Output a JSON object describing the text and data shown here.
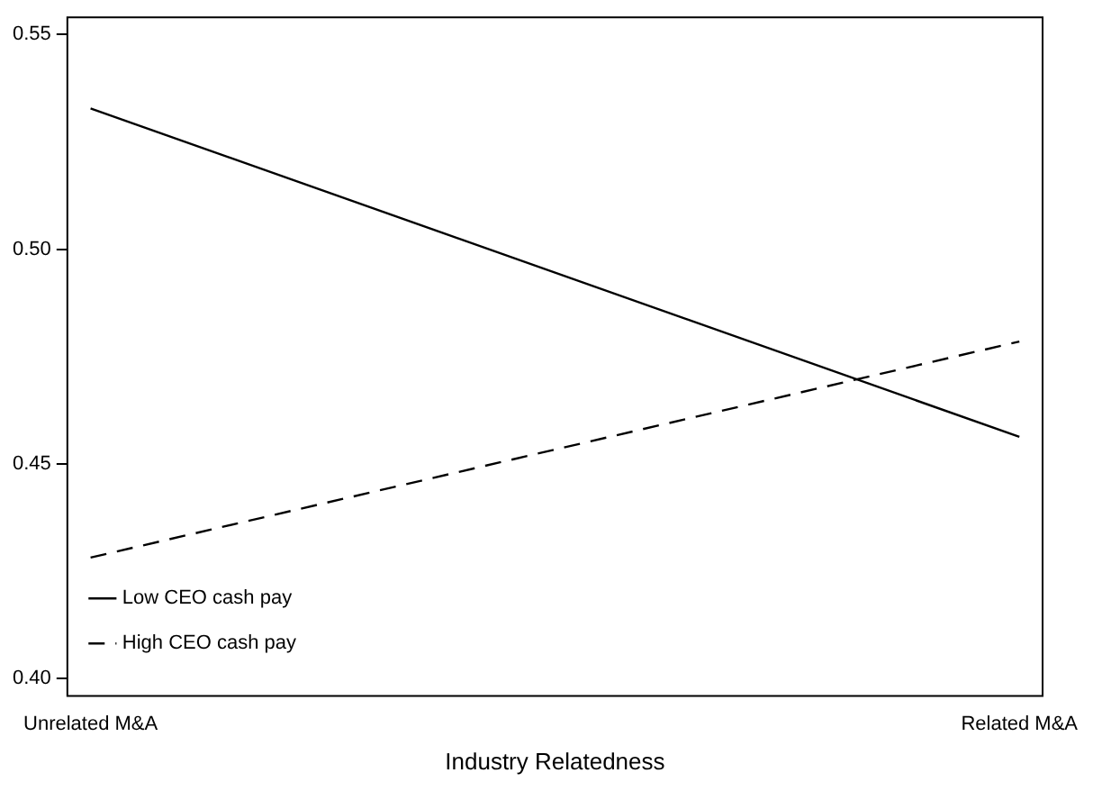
{
  "chart_data": {
    "type": "line",
    "xlabel": "Industry Relatedness",
    "categories": [
      "Unrelated M&A",
      "Related M&A"
    ],
    "series": [
      {
        "name": "Low CEO cash pay",
        "color": "#000000",
        "line_style": "solid",
        "values": [
          0.5328,
          0.4563
        ]
      },
      {
        "name": "High CEO cash pay",
        "color": "#000000",
        "line_style": "dashed",
        "values": [
          0.4282,
          0.4785
        ]
      }
    ],
    "ylim": [
      0.396,
      0.554
    ],
    "yticks": [
      {
        "value": 0.4,
        "label": "0.40"
      },
      {
        "value": 0.45,
        "label": "0.45"
      },
      {
        "value": 0.5,
        "label": "0.50"
      },
      {
        "value": 0.55,
        "label": "0.55"
      }
    ],
    "grid": false,
    "legend": "bottom left",
    "marker": "none"
  }
}
